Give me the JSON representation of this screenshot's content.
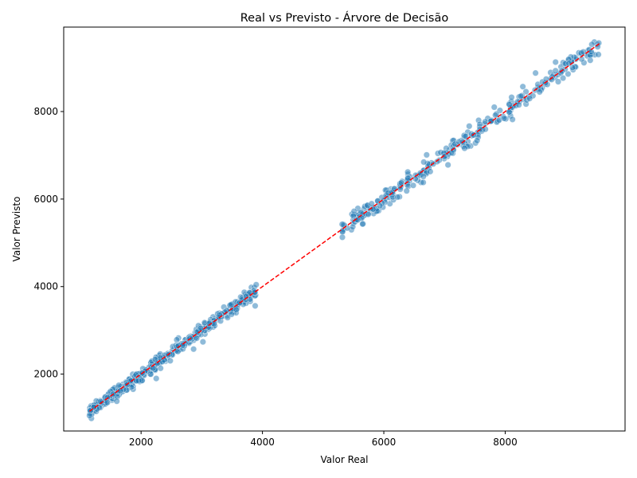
{
  "chart_data": {
    "type": "scatter",
    "title": "Real vs Previsto - Árvore de Decisão",
    "xlabel": "Valor Real",
    "ylabel": "Valor Previsto",
    "xlim": [
      725,
      9975
    ],
    "ylim": [
      700,
      9930
    ],
    "xticks": [
      2000,
      4000,
      6000,
      8000
    ],
    "yticks": [
      2000,
      4000,
      6000,
      8000
    ],
    "x_tick_labels": [
      "2000",
      "4000",
      "6000",
      "8000"
    ],
    "y_tick_labels": [
      "2000",
      "4000",
      "6000",
      "8000"
    ],
    "grid": false,
    "legend": "none",
    "colors": {
      "points": "#1f77b4",
      "reference_line": "#ff0000"
    },
    "reference_line": {
      "style": "dashed",
      "x": [
        1150,
        9550
      ],
      "y": [
        1150,
        9550
      ]
    },
    "clusters": [
      {
        "x_range": [
          1150,
          3900
        ],
        "count": 420,
        "spread": 70
      },
      {
        "x_range": [
          5300,
          9550
        ],
        "count": 300,
        "spread": 110
      }
    ],
    "outliers": [
      {
        "x": 1150,
        "y": 1050
      },
      {
        "x": 1600,
        "y": 1380
      },
      {
        "x": 2250,
        "y": 1900
      },
      {
        "x": 3880,
        "y": 3560
      },
      {
        "x": 3730,
        "y": 3780
      },
      {
        "x": 5650,
        "y": 5430
      },
      {
        "x": 6650,
        "y": 6380
      },
      {
        "x": 8120,
        "y": 7820
      },
      {
        "x": 8500,
        "y": 8880
      },
      {
        "x": 8830,
        "y": 9130
      },
      {
        "x": 7820,
        "y": 8100
      },
      {
        "x": 9050,
        "y": 9100
      }
    ]
  }
}
